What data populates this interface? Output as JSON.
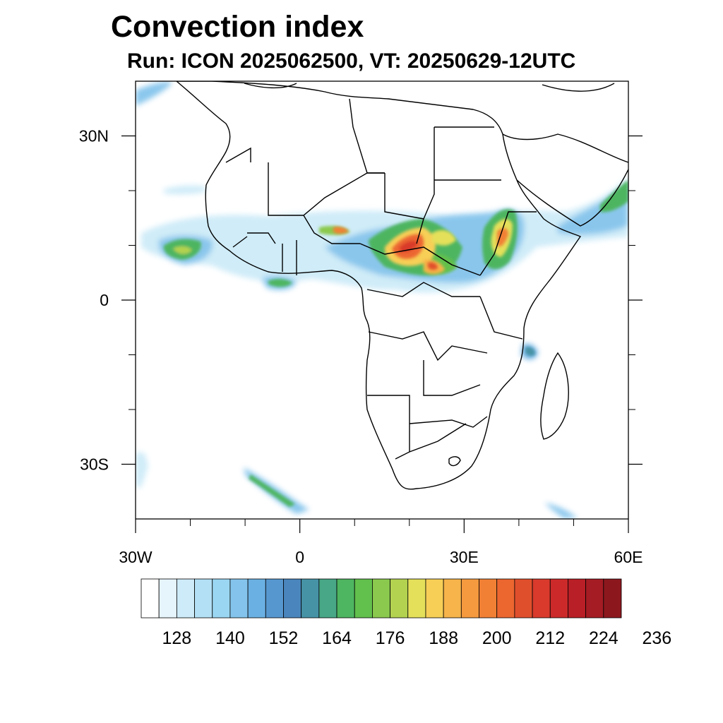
{
  "header": {
    "title": "Convection index",
    "subtitle": "Run: ICON 2025062500,  VT: 20250629-12UTC"
  },
  "map": {
    "projection": "cylindrical-equidistant",
    "lon_range": [
      -30,
      60
    ],
    "lat_range": [
      -40,
      40
    ],
    "x_ticks": [
      {
        "value": -30,
        "label": "30W"
      },
      {
        "value": 0,
        "label": "0"
      },
      {
        "value": 30,
        "label": "30E"
      },
      {
        "value": 60,
        "label": "60E"
      }
    ],
    "y_ticks": [
      {
        "value": 30,
        "label": "30N"
      },
      {
        "value": 0,
        "label": "0"
      },
      {
        "value": -30,
        "label": "30S"
      }
    ],
    "minor_x_ticks": [
      -20,
      -10,
      10,
      20,
      40,
      50
    ],
    "minor_y_ticks": [
      20,
      10,
      -10,
      -20
    ]
  },
  "colorbar": {
    "colors": [
      "#ffffff",
      "#e6f5fc",
      "#cdebf8",
      "#b3e0f5",
      "#9ad6f2",
      "#84c4ec",
      "#6ab0e2",
      "#5797cf",
      "#4a86bd",
      "#4693a6",
      "#47a786",
      "#4eb560",
      "#62c04c",
      "#8bc94e",
      "#b3d250",
      "#e4e05a",
      "#f7cf56",
      "#f6b44a",
      "#f59a3f",
      "#f18035",
      "#ec6630",
      "#e04f2c",
      "#d93a2c",
      "#cc2a2a",
      "#b91f26",
      "#a51c24",
      "#8c181e"
    ],
    "labels": [
      "128",
      "140",
      "152",
      "164",
      "176",
      "188",
      "200",
      "212",
      "224",
      "236"
    ]
  },
  "chart_data": {
    "type": "heatmap",
    "title": "Convection index",
    "subtitle": "Run: ICON 2025062500,  VT: 20250629-12UTC",
    "x_range": [
      -30,
      60
    ],
    "y_range": [
      -40,
      40
    ],
    "x_tick_labels": [
      "30W",
      "0",
      "30E",
      "60E"
    ],
    "y_tick_labels": [
      "30N",
      "0",
      "30S"
    ],
    "colorbar_labels": [
      128,
      140,
      152,
      164,
      176,
      188,
      200,
      212,
      224,
      236
    ],
    "regions": [
      {
        "lon": 22,
        "lat": 9,
        "value": 224
      },
      {
        "lon": 36,
        "lat": 10,
        "value": 210
      },
      {
        "lon": 8,
        "lat": 12,
        "value": 200
      },
      {
        "lon": 27,
        "lat": 5,
        "value": 188
      },
      {
        "lon": -15,
        "lat": 8.5,
        "value": 170
      },
      {
        "lon": -3.5,
        "lat": 3,
        "value": 168
      },
      {
        "lon": 57,
        "lat": 20,
        "value": 165
      },
      {
        "lon": 47,
        "lat": 13,
        "value": 145
      },
      {
        "lon": 44,
        "lat": -11,
        "value": 150
      },
      {
        "lon": -7,
        "lat": -36,
        "value": 165
      },
      {
        "lon": 48,
        "lat": -39,
        "value": 160
      },
      {
        "lon": -26,
        "lat": 38,
        "value": 160
      }
    ]
  }
}
